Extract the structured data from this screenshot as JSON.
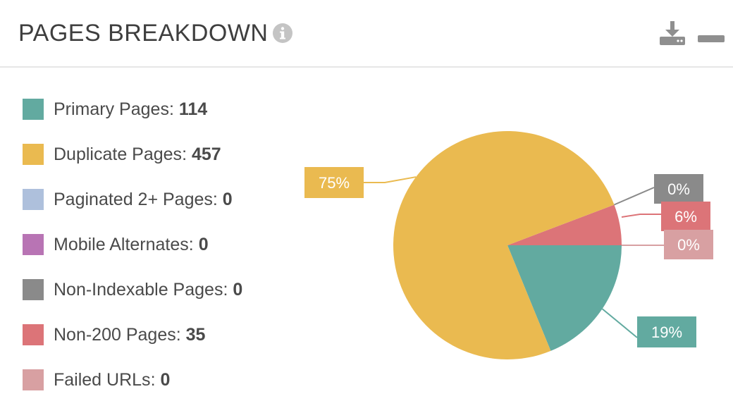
{
  "header": {
    "title": "PAGES BREAKDOWN"
  },
  "icons": {
    "info": "info-icon",
    "download": "download-icon",
    "minimize": "minimize-icon"
  },
  "colors": {
    "primary": "#62aaa0",
    "duplicate": "#eaba50",
    "paginated": "#aec0dc",
    "mobile": "#b874b4",
    "nonindexable": "#8a8a8a",
    "non200": "#dc7478",
    "failed": "#d8a0a2"
  },
  "chart_data": {
    "type": "pie",
    "categories": [
      "Primary Pages",
      "Duplicate Pages",
      "Paginated 2+ Pages",
      "Mobile Alternates",
      "Non-Indexable Pages",
      "Non-200 Pages",
      "Failed URLs"
    ],
    "values": [
      114,
      457,
      0,
      0,
      0,
      35,
      0
    ],
    "slice_labels": [
      {
        "category": "Primary Pages",
        "label": "19%"
      },
      {
        "category": "Duplicate Pages",
        "label": "75%"
      },
      {
        "category": "Non-Indexable Pages",
        "label": "0%"
      },
      {
        "category": "Non-200 Pages",
        "label": "6%"
      },
      {
        "category": "Failed URLs",
        "label": "0%"
      }
    ],
    "legend_placement": "left"
  }
}
